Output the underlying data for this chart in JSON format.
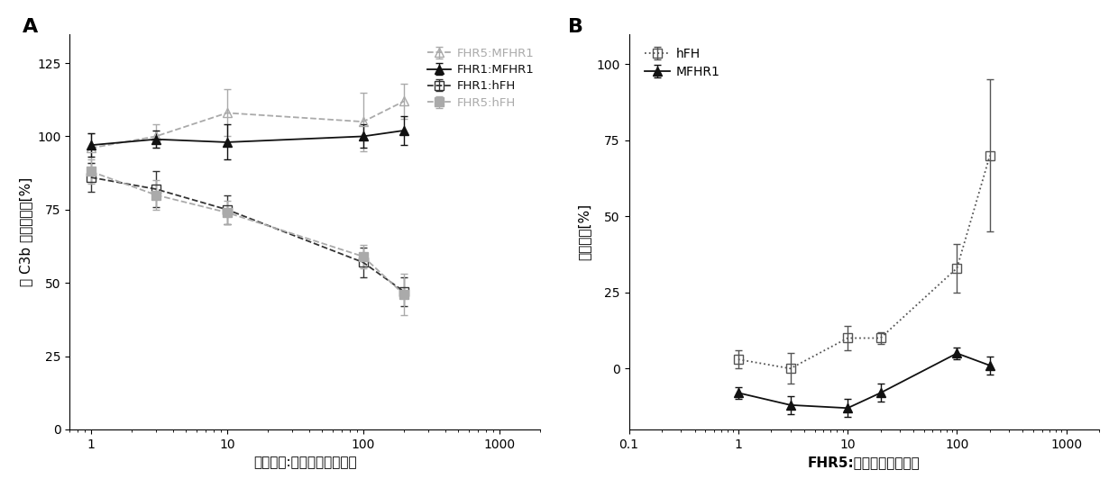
{
  "panel_A": {
    "xlabel": "竞争蛋白:测试蛋白的摩尔比",
    "ylabel": "与 C3b 的相对结合[%]",
    "ylim": [
      0,
      135
    ],
    "yticks": [
      0,
      25,
      50,
      75,
      100,
      125
    ],
    "xlim": [
      0.7,
      2000
    ],
    "legend_labels": [
      "FHR5:MFHR1",
      "FHR1:MFHR1",
      "FHR1:hFH",
      "FHR5:hFH"
    ],
    "legend_colors": [
      "#aaaaaa",
      "#111111",
      "#111111",
      "#aaaaaa"
    ],
    "series": [
      {
        "label": "FHR5:MFHR1",
        "line_color": "#aaaaaa",
        "marker": "^",
        "mfc": "none",
        "mec": "#aaaaaa",
        "linestyle": "--",
        "x": [
          1,
          3,
          10,
          100,
          200
        ],
        "y": [
          96,
          100,
          108,
          105,
          112
        ],
        "yerr": [
          5,
          4,
          8,
          10,
          6
        ]
      },
      {
        "label": "FHR1:MFHR1",
        "line_color": "#111111",
        "marker": "^",
        "mfc": "#111111",
        "mec": "#111111",
        "linestyle": "-",
        "x": [
          1,
          3,
          10,
          100,
          200
        ],
        "y": [
          97,
          99,
          98,
          100,
          102
        ],
        "yerr": [
          4,
          3,
          6,
          4,
          5
        ]
      },
      {
        "label": "FHR1:hFH",
        "line_color": "#333333",
        "marker": "s",
        "mfc": "none",
        "mec": "#333333",
        "linestyle": "--",
        "x": [
          1,
          3,
          10,
          100,
          200
        ],
        "y": [
          86,
          82,
          75,
          57,
          47
        ],
        "yerr": [
          5,
          6,
          5,
          5,
          5
        ]
      },
      {
        "label": "FHR5:hFH",
        "line_color": "#aaaaaa",
        "marker": "s",
        "mfc": "#aaaaaa",
        "mec": "#aaaaaa",
        "linestyle": "--",
        "x": [
          1,
          3,
          10,
          100,
          200
        ],
        "y": [
          88,
          80,
          74,
          59,
          46
        ],
        "yerr": [
          4,
          5,
          4,
          4,
          7
        ]
      }
    ]
  },
  "panel_B": {
    "xlabel": "FHR5:测试蛋白的摩尔比",
    "ylabel": "相对溶血[%]",
    "ylim": [
      -20,
      110
    ],
    "yticks": [
      0,
      25,
      50,
      75,
      100
    ],
    "xlim": [
      0.1,
      2000
    ],
    "series": [
      {
        "label": "hFH",
        "line_color": "#555555",
        "marker": "s",
        "mfc": "none",
        "mec": "#555555",
        "linestyle": ":",
        "x": [
          1,
          3,
          10,
          20,
          100,
          200
        ],
        "y": [
          3,
          0,
          10,
          10,
          33,
          70
        ],
        "yerr": [
          3,
          5,
          4,
          2,
          8,
          25
        ]
      },
      {
        "label": "MFHR1",
        "line_color": "#111111",
        "marker": "^",
        "mfc": "#111111",
        "mec": "#111111",
        "linestyle": "-",
        "x": [
          1,
          3,
          10,
          20,
          100,
          200
        ],
        "y": [
          -8,
          -12,
          -13,
          -8,
          5,
          1
        ],
        "yerr": [
          2,
          3,
          3,
          3,
          2,
          3
        ]
      }
    ]
  }
}
